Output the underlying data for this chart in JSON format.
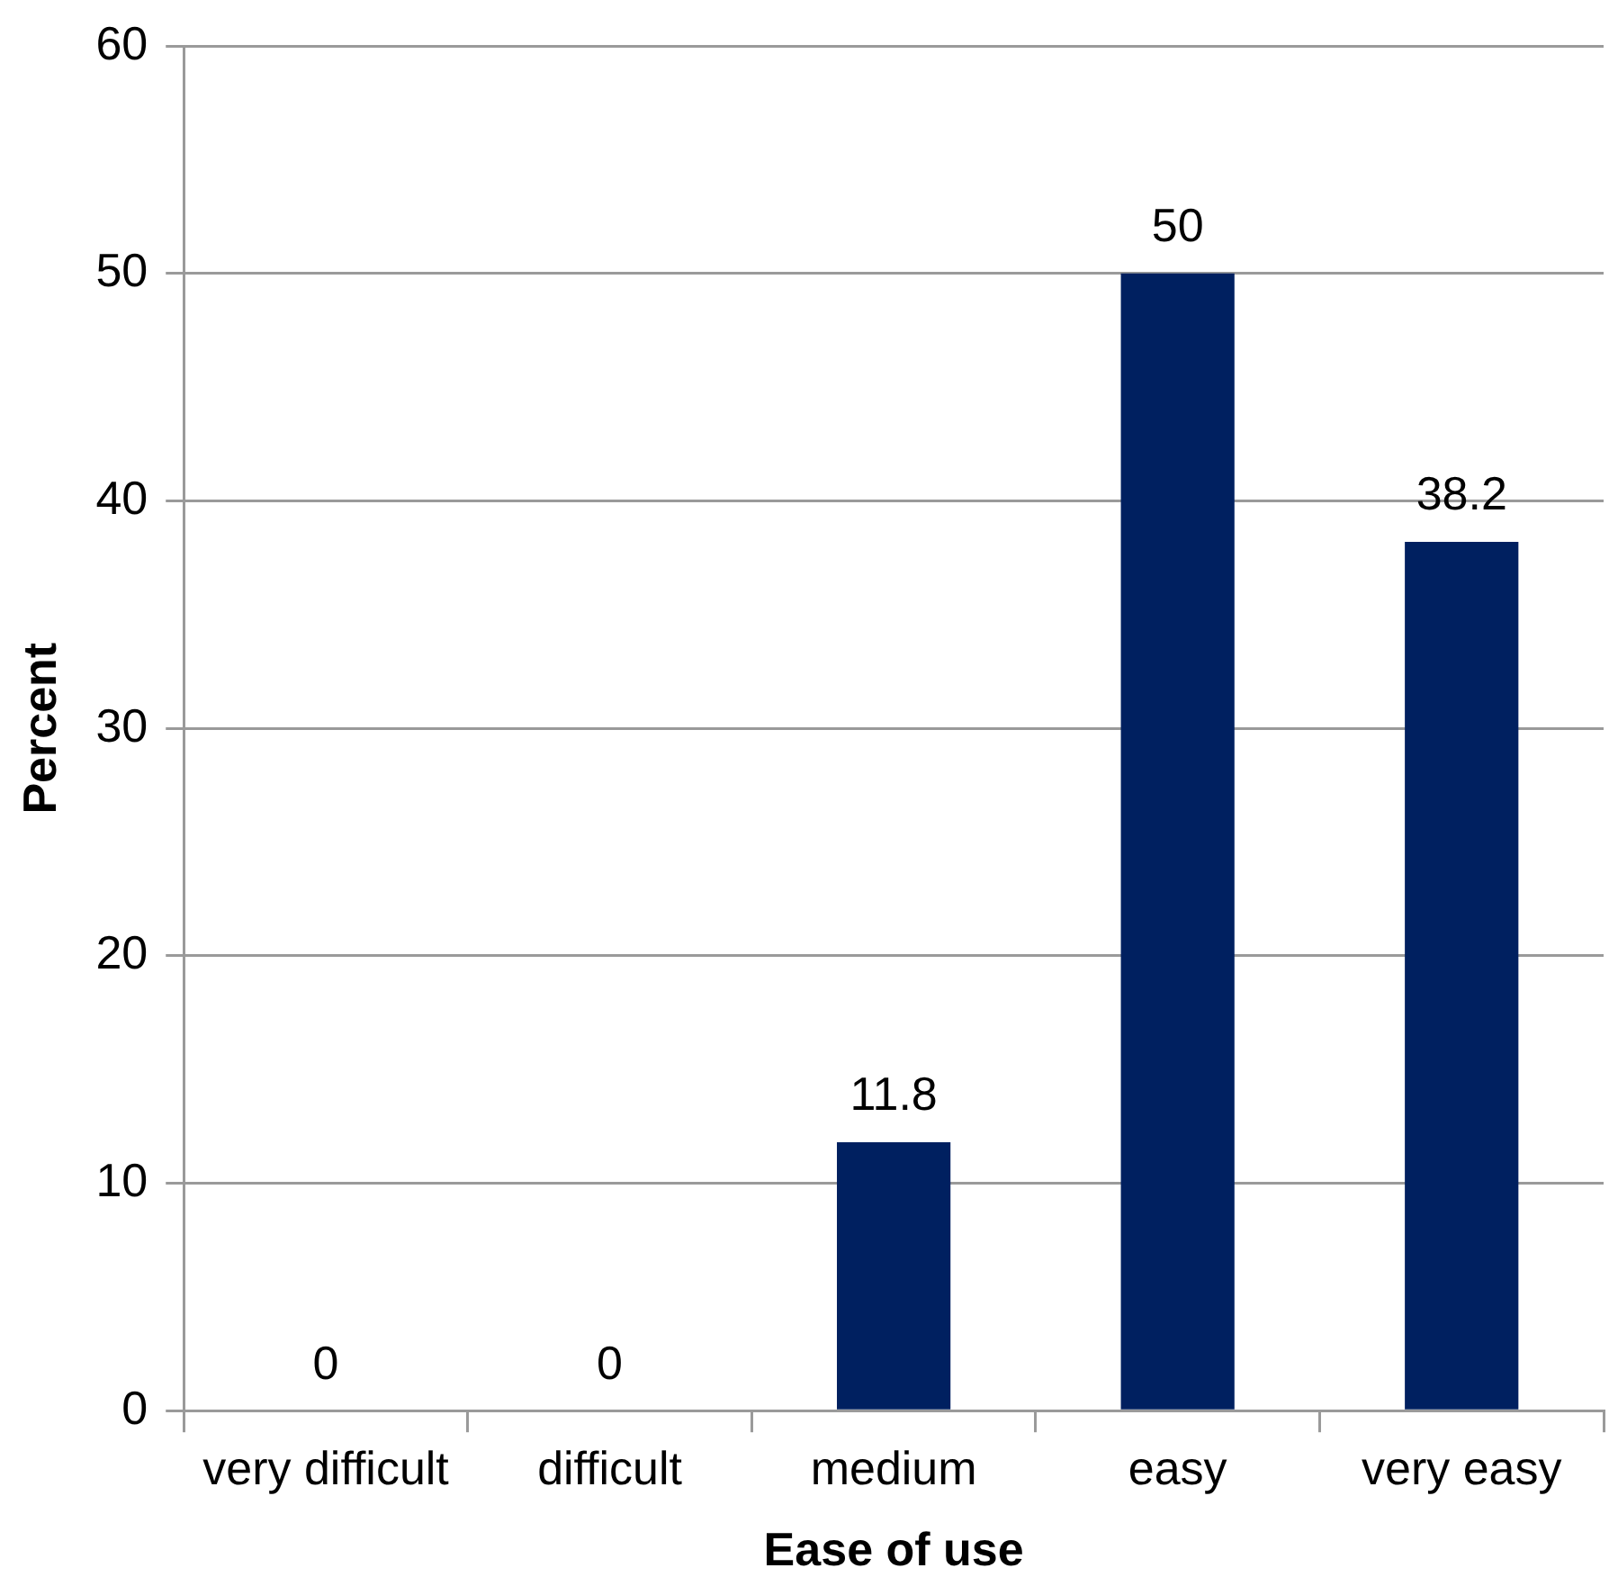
{
  "chart_data": {
    "type": "bar",
    "xlabel": "Ease of use",
    "ylabel": "Percent",
    "categories": [
      "very difficult",
      "difficult",
      "medium",
      "easy",
      "very easy"
    ],
    "values": [
      0,
      0,
      11.8,
      50,
      38.2
    ],
    "color": "#002060",
    "ylim": [
      0,
      60
    ],
    "yticks": [
      0,
      10,
      20,
      30,
      40,
      50,
      60
    ],
    "grid": "y",
    "data_labels": true,
    "legend": false
  }
}
